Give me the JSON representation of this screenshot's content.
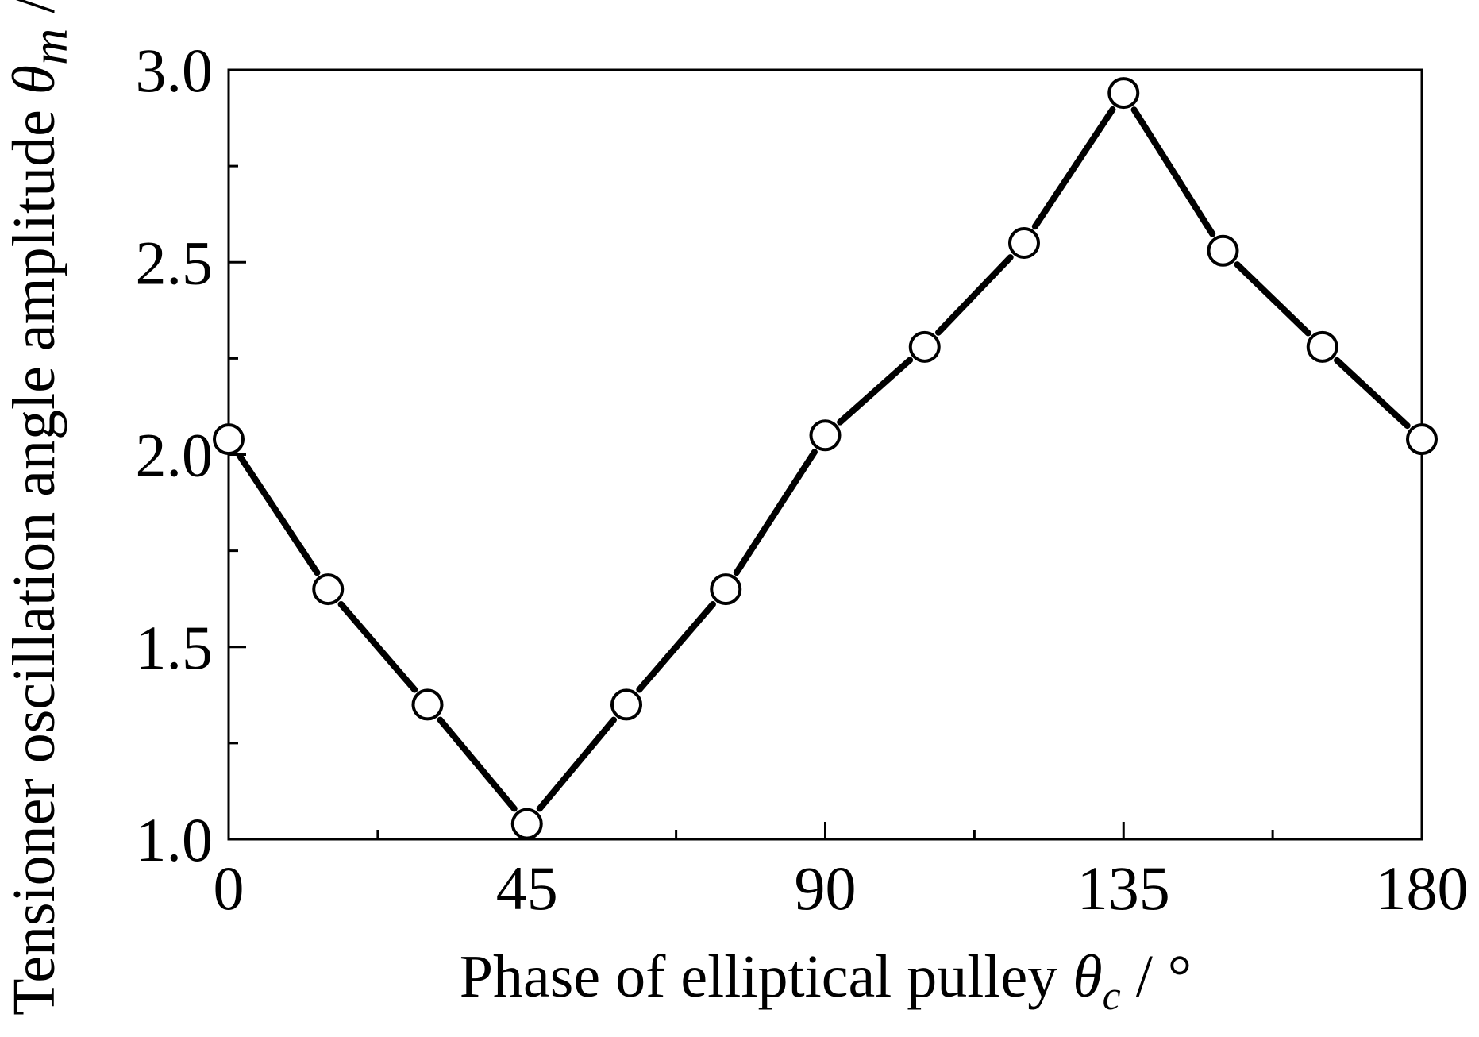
{
  "chart_data": {
    "type": "line",
    "xlabel_text": "Phase of elliptical pulley ",
    "xlabel_symbol": "θ",
    "xlabel_subscript": "c",
    "xlabel_unit": " / °",
    "ylabel_text": "Tensioner oscillation angle amplitude ",
    "ylabel_symbol": "θ",
    "ylabel_subscript": "m",
    "ylabel_unit": " /°",
    "xlim": [
      0,
      180
    ],
    "ylim": [
      1.0,
      3.0
    ],
    "x_ticks": [
      "0",
      "45",
      "90",
      "135",
      "180"
    ],
    "y_ticks": [
      "1.0",
      "1.5",
      "2.0",
      "2.5",
      "3.0"
    ],
    "x_minor_step": 22.5,
    "y_minor_step": 0.25,
    "grid": false,
    "series": [
      {
        "marker": "open-circle",
        "color": "#000000",
        "x": [
          0,
          15,
          30,
          45,
          60,
          75,
          90,
          105,
          120,
          135,
          150,
          165,
          180
        ],
        "y": [
          2.04,
          1.65,
          1.35,
          1.04,
          1.35,
          1.65,
          2.05,
          2.28,
          2.55,
          2.94,
          2.53,
          2.28,
          2.04
        ]
      }
    ]
  }
}
